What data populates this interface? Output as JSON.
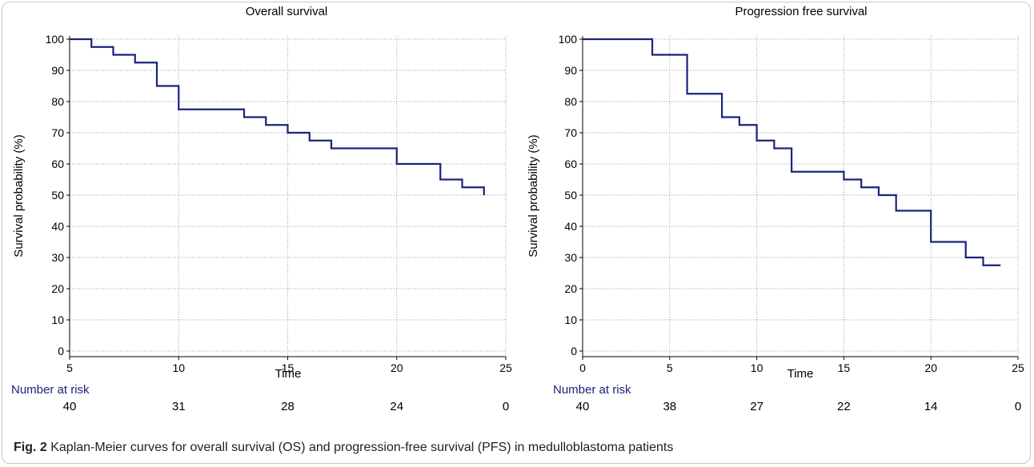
{
  "caption": {
    "label": "Fig. 2",
    "text": "Kaplan-Meier curves for overall survival (OS) and progression-free survival (PFS) in medulloblastoma patients"
  },
  "colors": {
    "curve": "#1a237e",
    "grid": "#9e9e9e",
    "axis": "#000000",
    "risk_header": "#1a237e"
  },
  "chart_data": [
    {
      "type": "line",
      "step": true,
      "title": "Overall survival",
      "xlabel": "Time",
      "ylabel": "Survival probability (%)",
      "xlim": [
        5,
        25
      ],
      "ylim": [
        0,
        100
      ],
      "xticks": [
        5,
        10,
        15,
        20,
        25
      ],
      "yticks": [
        0,
        10,
        20,
        30,
        40,
        50,
        60,
        70,
        80,
        90,
        100
      ],
      "grid": true,
      "series": [
        {
          "x": [
            5,
            6,
            7,
            8,
            9,
            10,
            13,
            14,
            15,
            16,
            17,
            20,
            22,
            23,
            24
          ],
          "y": [
            100,
            97.5,
            95,
            92.5,
            85,
            77.5,
            75,
            72.5,
            70,
            67.5,
            65,
            60,
            55,
            52.5,
            50
          ]
        }
      ],
      "risk_table": {
        "header": "Number at risk",
        "times": [
          5,
          10,
          15,
          20,
          25
        ],
        "values": [
          "40",
          "31",
          "28",
          "24",
          "0"
        ]
      }
    },
    {
      "type": "line",
      "step": true,
      "title": "Progression free survival",
      "xlabel": "Time",
      "ylabel": "Survival probability (%)",
      "xlim": [
        0,
        25
      ],
      "ylim": [
        0,
        100
      ],
      "xticks": [
        0,
        5,
        10,
        15,
        20,
        25
      ],
      "yticks": [
        0,
        10,
        20,
        30,
        40,
        50,
        60,
        70,
        80,
        90,
        100
      ],
      "grid": true,
      "series": [
        {
          "x": [
            0,
            4,
            6,
            8,
            9,
            10,
            11,
            12,
            15,
            16,
            17,
            18,
            20,
            22,
            23,
            24
          ],
          "y": [
            100,
            95,
            82.5,
            75,
            72.5,
            67.5,
            65,
            57.5,
            55,
            52.5,
            50,
            45,
            35,
            30,
            27.5,
            27.5
          ]
        }
      ],
      "risk_table": {
        "header": "Number at risk",
        "times": [
          0,
          5,
          10,
          15,
          20,
          25
        ],
        "values": [
          "40",
          "38",
          "27",
          "22",
          "14",
          "0"
        ]
      }
    }
  ]
}
